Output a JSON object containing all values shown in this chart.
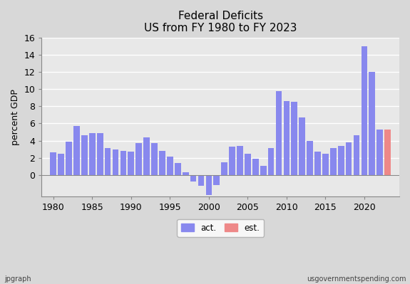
{
  "title": "Federal Deficits\nUS from FY 1980 to FY 2023",
  "ylabel": "percent GDP",
  "years": [
    1980,
    1981,
    1982,
    1983,
    1984,
    1985,
    1986,
    1987,
    1988,
    1989,
    1990,
    1991,
    1992,
    1993,
    1994,
    1995,
    1996,
    1997,
    1998,
    1999,
    2000,
    2001,
    2002,
    2003,
    2004,
    2005,
    2006,
    2007,
    2008,
    2009,
    2010,
    2011,
    2012,
    2013,
    2014,
    2015,
    2016,
    2017,
    2018,
    2019,
    2020,
    2021,
    2022,
    2023
  ],
  "values": [
    2.6,
    2.5,
    3.9,
    5.7,
    4.6,
    4.9,
    4.9,
    3.1,
    3.0,
    2.8,
    2.7,
    3.7,
    4.4,
    3.7,
    2.8,
    2.1,
    1.4,
    0.3,
    -0.8,
    -1.3,
    -2.3,
    -1.2,
    1.5,
    3.3,
    3.4,
    2.5,
    1.9,
    1.1,
    3.1,
    9.8,
    8.6,
    8.5,
    6.7,
    4.0,
    2.7,
    2.5,
    3.1,
    3.4,
    3.8,
    4.6,
    15.0,
    12.0,
    5.3,
    5.3
  ],
  "bar_color_act": "#8888ee",
  "bar_color_est": "#ee8888",
  "est_start_year": 2023,
  "ylim": [
    -2.5,
    16
  ],
  "yticks": [
    0,
    2,
    4,
    6,
    8,
    10,
    12,
    14,
    16
  ],
  "xticks": [
    1980,
    1985,
    1990,
    1995,
    2000,
    2005,
    2010,
    2015,
    2020
  ],
  "xlim": [
    1978.5,
    2024.5
  ],
  "background_color": "#d8d8d8",
  "plot_area_color": "#e8e8e8",
  "grid_color": "#ffffff",
  "title_fontsize": 11,
  "axis_fontsize": 9,
  "ylabel_fontsize": 9,
  "footnote_left": "jpgraph",
  "footnote_right": "usgovernmentspending.com",
  "legend_labels": [
    "act.",
    "est."
  ]
}
